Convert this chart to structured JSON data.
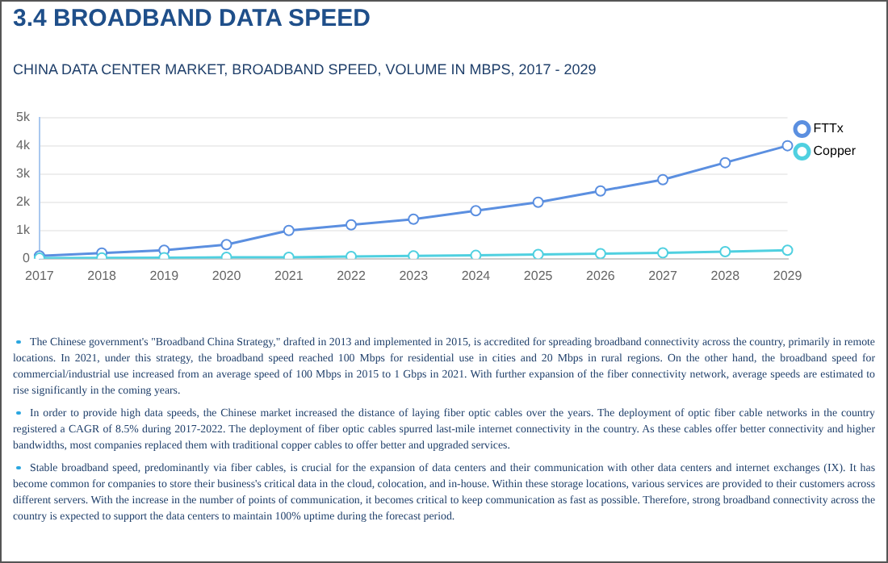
{
  "chart_data": {
    "type": "line",
    "title": "3.4 BROADBAND DATA SPEED",
    "subtitle": "CHINA DATA CENTER MARKET, BROADBAND SPEED, VOLUME IN MBPS, 2017 - 2029",
    "categories": [
      "2017",
      "2018",
      "2019",
      "2020",
      "2021",
      "2022",
      "2023",
      "2024",
      "2025",
      "2026",
      "2027",
      "2028",
      "2029"
    ],
    "series": [
      {
        "name": "FTTx",
        "color": "#5b8fe0",
        "values": [
          100,
          200,
          300,
          500,
          1000,
          1200,
          1400,
          1700,
          2000,
          2400,
          2800,
          3400,
          4000
        ]
      },
      {
        "name": "Copper",
        "color": "#4fd0e0",
        "values": [
          20,
          30,
          40,
          50,
          50,
          80,
          100,
          120,
          150,
          180,
          210,
          250,
          300
        ]
      }
    ],
    "ylim": [
      0,
      5000
    ],
    "yticks": [
      0,
      {
        "value": 1000,
        "label": "1k"
      },
      {
        "value": 2000,
        "label": "2k"
      },
      {
        "value": 3000,
        "label": "3k"
      },
      {
        "value": 4000,
        "label": "4k"
      },
      {
        "value": 5000,
        "label": "5k"
      }
    ],
    "grid": "y",
    "legend": "top right",
    "marker": "circle",
    "line_style": "solid",
    "annotations": [
      "The Chinese government's \"Broadband China Strategy,\" drafted in 2013 and implemented in 2015, is accredited for spreading broadband connectivity across the country, primarily in remote locations. In 2021, under this strategy, the broadband speed reached 100 Mbps for residential use in cities and 20 Mbps in rural regions. On the other hand, the broadband speed for commercial/industrial use increased from an average speed of 100 Mbps in 2015 to 1 Gbps in 2021. With further expansion of the fiber connectivity network, average speeds are estimated to rise significantly in the coming years.",
      "In order to provide high data speeds, the Chinese market increased the distance of laying fiber optic cables over the years. The deployment of optic fiber cable networks in the country registered a CAGR of 8.5% during 2017-2022. The deployment of fiber optic cables spurred last-mile internet connectivity in the country. As these cables offer better connectivity and higher bandwidths, most companies replaced them with traditional copper cables to offer better and upgraded services.",
      "Stable broadband speed, predominantly via fiber cables, is crucial for the expansion of data centers and their communication with other data centers and internet exchanges (IX). It has become common for companies to store their business's critical data in the cloud, colocation, and in-house. Within these storage locations, various services are provided to their customers across different servers. With the increase in the number of points of communication, it becomes critical to keep communication as fast as possible. Therefore, strong broadband connectivity across the country is expected to support the data centers to maintain 100% uptime during the forecast period."
    ]
  }
}
